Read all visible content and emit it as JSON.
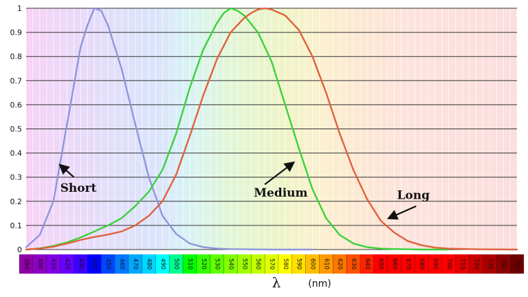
{
  "chart_data": {
    "type": "line",
    "title": "",
    "xlabel_symbol": "λ",
    "xlabel_unit": "(nm)",
    "ylabel": "",
    "xlim": [
      390,
      750
    ],
    "ylim": [
      0,
      1
    ],
    "yticks": [
      "0",
      "0.1",
      "0.2",
      "0.3",
      "0.4",
      "0.5",
      "0.6",
      "0.7",
      "0.8",
      "0.9",
      "1"
    ],
    "xticks": [
      "390",
      "400",
      "410",
      "420",
      "430",
      "440",
      "450",
      "460",
      "470",
      "480",
      "490",
      "500",
      "510",
      "520",
      "530",
      "540",
      "550",
      "560",
      "570",
      "580",
      "590",
      "600",
      "610",
      "620",
      "630",
      "640",
      "650",
      "660",
      "670",
      "680",
      "690",
      "700",
      "710",
      "720",
      "730",
      "740",
      "750"
    ],
    "grid": true,
    "series": [
      {
        "label": "Short",
        "color": "#8d96dc",
        "x": [
          390,
          400,
          410,
          420,
          430,
          435,
          440,
          445,
          450,
          460,
          470,
          480,
          490,
          500,
          510,
          520,
          530,
          540,
          550,
          570,
          600
        ],
        "y": [
          0.01,
          0.06,
          0.2,
          0.52,
          0.84,
          0.93,
          1.0,
          0.99,
          0.93,
          0.75,
          0.52,
          0.3,
          0.14,
          0.065,
          0.025,
          0.01,
          0.004,
          0.002,
          0.001,
          0,
          0
        ]
      },
      {
        "label": "Medium",
        "color": "#3ad23a",
        "x": [
          390,
          400,
          410,
          420,
          430,
          440,
          450,
          460,
          470,
          480,
          490,
          500,
          510,
          520,
          530,
          535,
          540,
          545,
          550,
          560,
          570,
          580,
          590,
          600,
          610,
          620,
          630,
          640,
          650,
          660,
          670,
          680,
          690,
          700
        ],
        "y": [
          0,
          0.005,
          0.015,
          0.03,
          0.05,
          0.075,
          0.1,
          0.13,
          0.18,
          0.24,
          0.33,
          0.48,
          0.67,
          0.83,
          0.94,
          0.98,
          1.0,
          0.99,
          0.97,
          0.9,
          0.78,
          0.6,
          0.42,
          0.25,
          0.13,
          0.06,
          0.025,
          0.01,
          0.004,
          0.002,
          0.001,
          0,
          0,
          0
        ]
      },
      {
        "label": "Long",
        "color": "#e0603a",
        "x": [
          390,
          400,
          410,
          420,
          430,
          440,
          450,
          460,
          470,
          480,
          490,
          500,
          510,
          520,
          530,
          540,
          550,
          555,
          560,
          565,
          570,
          580,
          590,
          600,
          610,
          620,
          630,
          640,
          650,
          660,
          670,
          680,
          690,
          700,
          720,
          750
        ],
        "y": [
          0,
          0.004,
          0.012,
          0.025,
          0.04,
          0.052,
          0.062,
          0.075,
          0.1,
          0.14,
          0.2,
          0.31,
          0.47,
          0.64,
          0.79,
          0.9,
          0.96,
          0.98,
          0.995,
          1.0,
          0.995,
          0.97,
          0.91,
          0.8,
          0.65,
          0.48,
          0.33,
          0.21,
          0.12,
          0.07,
          0.035,
          0.018,
          0.008,
          0.004,
          0.001,
          0
        ]
      }
    ],
    "annotations": [
      {
        "text": "Short",
        "text_at": [
          415,
          0.24
        ],
        "arrow_from": [
          425,
          0.3
        ],
        "arrow_to": [
          415,
          0.35
        ]
      },
      {
        "text": "Medium",
        "text_at": [
          557,
          0.22
        ],
        "arrow_from": [
          565,
          0.27
        ],
        "arrow_to": [
          586,
          0.36
        ]
      },
      {
        "text": "Long",
        "text_at": [
          662,
          0.21
        ],
        "arrow_from": [
          676,
          0.18
        ],
        "arrow_to": [
          656,
          0.13
        ]
      }
    ],
    "background_spectrum": true,
    "wavelength_strip": true
  }
}
